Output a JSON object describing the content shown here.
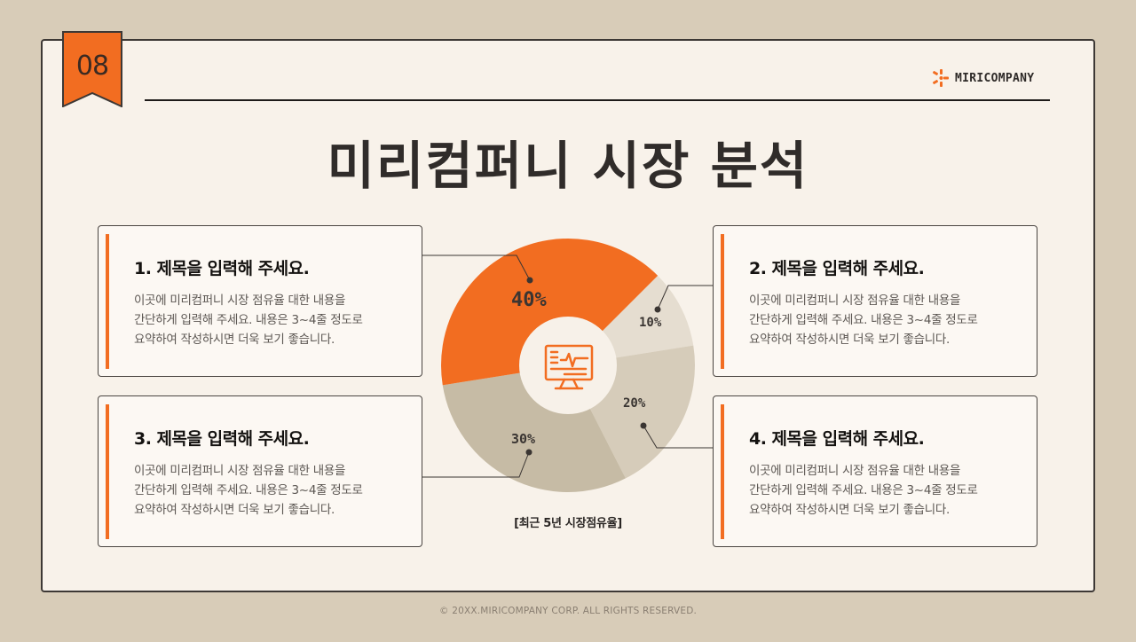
{
  "badge": {
    "number": "08",
    "color": "#f26d21"
  },
  "brand": {
    "name": "MIRICOMPANY",
    "icon": "asterisk-burst-icon",
    "accent": "#f26d21"
  },
  "title": "미리컴퍼니 시장 분석",
  "cards": [
    {
      "title": "1. 제목을 입력해 주세요.",
      "lines": [
        "이곳에 미리컴퍼니 시장 점유율 대한 내용을",
        "간단하게 입력해 주세요. 내용은 3~4줄 정도로",
        "요약하여 작성하시면 더욱 보기 좋습니다."
      ]
    },
    {
      "title": "2. 제목을 입력해 주세요.",
      "lines": [
        "이곳에 미리컴퍼니 시장 점유율 대한 내용을",
        "간단하게 입력해 주세요. 내용은 3~4줄 정도로",
        "요약하여 작성하시면 더욱 보기 좋습니다."
      ]
    },
    {
      "title": "3. 제목을 입력해 주세요.",
      "lines": [
        "이곳에 미리컴퍼니 시장 점유율 대한 내용을",
        "간단하게 입력해 주세요. 내용은 3~4줄 정도로",
        "요약하여 작성하시면 더욱 보기 좋습니다."
      ]
    },
    {
      "title": "4. 제목을 입력해 주세요.",
      "lines": [
        "이곳에 미리컴퍼니 시장 점유율 대한 내용을",
        "간단하게 입력해 주세요. 내용은 3~4줄 정도로",
        "요약하여 작성하시면 더욱 보기 좋습니다."
      ]
    }
  ],
  "chart_data": {
    "type": "pie",
    "title": "",
    "caption": "[최근 5년 시장점유율]",
    "center_icon": "monitor-chart-icon",
    "categories": [
      "1",
      "2",
      "4",
      "3"
    ],
    "slices": [
      {
        "label": "10%",
        "value": 10,
        "color": "#e5ddd0",
        "card": 2
      },
      {
        "label": "20%",
        "value": 20,
        "color": "#d6ccba",
        "card": 4
      },
      {
        "label": "30%",
        "value": 30,
        "color": "#c6bba5",
        "card": 3
      },
      {
        "label": "40%",
        "value": 40,
        "color": "#f26d21",
        "card": 1
      }
    ],
    "values": [
      10,
      20,
      30,
      40
    ],
    "legend": "none"
  },
  "footer": "© 20XX.MIRICOMPANY CORP. ALL RIGHTS RESERVED."
}
